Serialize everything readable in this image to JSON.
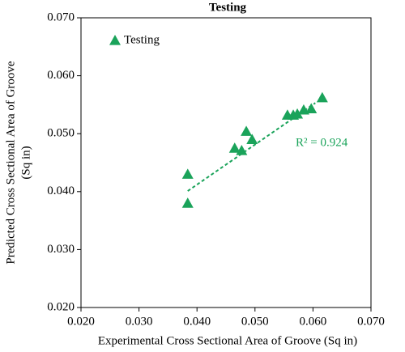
{
  "chart_data": {
    "type": "scatter",
    "title": "Testing",
    "x_label": "Experimental Cross Sectional Area of Groove (Sq in)",
    "y_label_lines": [
      "Predicted Cross Sectional Area of Groove",
      "(Sq in)"
    ],
    "series": [
      {
        "name": "Testing",
        "color": "#1aa35a",
        "x": [
          0.0384,
          0.0384,
          0.0465,
          0.0477,
          0.0485,
          0.0495,
          0.0556,
          0.0566,
          0.0573,
          0.0584,
          0.0597,
          0.0616
        ],
        "values": [
          0.043,
          0.038,
          0.0475,
          0.0471,
          0.0504,
          0.049,
          0.0532,
          0.0532,
          0.0534,
          0.0541,
          0.0543,
          0.0562
        ]
      }
    ],
    "trendline": {
      "x": [
        0.0384,
        0.0604
      ],
      "values": [
        0.0401,
        0.0553
      ]
    },
    "annotation": "R² = 0.924",
    "xlim": [
      0.02,
      0.07
    ],
    "xticks": [
      {
        "value": 0.02,
        "label": "0.020"
      },
      {
        "value": 0.03,
        "label": "0.030"
      },
      {
        "value": 0.04,
        "label": "0.040"
      },
      {
        "value": 0.05,
        "label": "0.050"
      },
      {
        "value": 0.06,
        "label": "0.060"
      },
      {
        "value": 0.07,
        "label": "0.070"
      }
    ],
    "ylim": [
      0.02,
      0.07
    ],
    "yticks": [
      {
        "value": 0.02,
        "label": "0.020"
      },
      {
        "value": 0.03,
        "label": "0.030"
      },
      {
        "value": 0.04,
        "label": "0.040"
      },
      {
        "value": 0.05,
        "label": "0.050"
      },
      {
        "value": 0.06,
        "label": "0.060"
      },
      {
        "value": 0.07,
        "label": "0.070"
      }
    ],
    "legend": "top-left"
  }
}
